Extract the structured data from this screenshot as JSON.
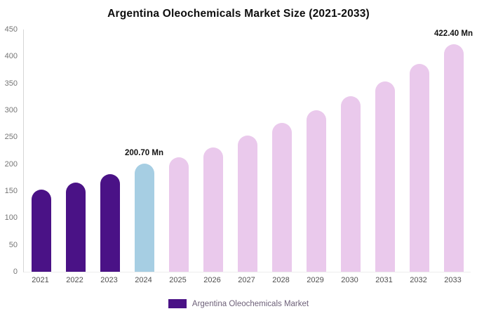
{
  "title": "Argentina Oleochemicals Market Size (2021-2033)",
  "legend": {
    "label": "Argentina Oleochemicals Market"
  },
  "colors": {
    "historical_bar": "#4a1286",
    "highlight_bar": "#a6cee3",
    "forecast_bar": "#eac9ec",
    "legend_swatch": "#4a1286",
    "legend_text": "#6e6179",
    "axis_text": "#757575",
    "x_axis_text": "#4f4f4f"
  },
  "chart_data": {
    "type": "bar",
    "title": "Argentina Oleochemicals Market Size (2021-2033)",
    "series_name": "Argentina Oleochemicals Market",
    "categories": [
      "2021",
      "2022",
      "2023",
      "2024",
      "2025",
      "2026",
      "2027",
      "2028",
      "2029",
      "2030",
      "2031",
      "2032",
      "2033"
    ],
    "values": [
      152,
      166,
      181,
      200.7,
      213,
      231,
      253,
      276,
      300,
      326,
      354,
      386,
      422.4
    ],
    "unit": "Mn",
    "bar_colors": [
      "#4a1286",
      "#4a1286",
      "#4a1286",
      "#a6cee3",
      "#eac9ec",
      "#eac9ec",
      "#eac9ec",
      "#eac9ec",
      "#eac9ec",
      "#eac9ec",
      "#eac9ec",
      "#eac9ec",
      "#eac9ec"
    ],
    "y_ticks": [
      0,
      50,
      100,
      150,
      200,
      250,
      300,
      350,
      400,
      450
    ],
    "ylim": [
      0,
      450
    ],
    "grid": false,
    "legend_position": "bottom",
    "annotations": [
      {
        "category": "2024",
        "text": "200.70 Mn"
      },
      {
        "category": "2033",
        "text": "422.40 Mn"
      }
    ]
  }
}
